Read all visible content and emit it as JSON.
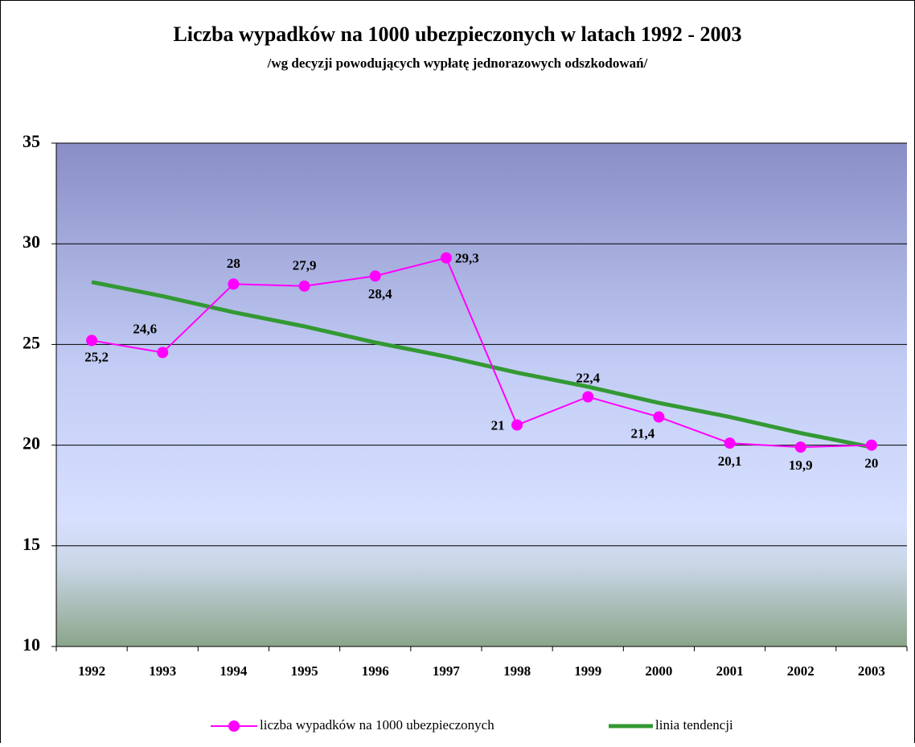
{
  "chart_data": {
    "type": "line",
    "title": "Liczba wypadków na 1000 ubezpieczonych w latach 1992 - 2003",
    "subtitle": "/wg decyzji powodujących wypłatę jednorazowych odszkodowań/",
    "categories": [
      "1992",
      "1993",
      "1994",
      "1995",
      "1996",
      "1997",
      "1998",
      "1999",
      "2000",
      "2001",
      "2002",
      "2003"
    ],
    "series": [
      {
        "name": "liczba wypadków na 1000 ubezpieczonych",
        "color": "#ff00ff",
        "values": [
          25.2,
          24.6,
          28,
          27.9,
          28.4,
          29.3,
          21,
          22.4,
          21.4,
          20.1,
          19.9,
          20
        ],
        "value_labels": [
          "25,2",
          "24,6",
          "28",
          "27,9",
          "28,4",
          "29,3",
          "21",
          "22,4",
          "21,4",
          "20,1",
          "19,9",
          "20"
        ]
      },
      {
        "name": "linia tendencji",
        "color": "#339933",
        "values": [
          28.1,
          27.4,
          26.6,
          25.9,
          25.1,
          24.4,
          23.6,
          22.9,
          22.1,
          21.4,
          20.6,
          19.9
        ]
      }
    ],
    "ylim": [
      10,
      35
    ],
    "yticks": [
      10,
      15,
      20,
      25,
      30,
      35
    ],
    "grid": true,
    "legend": "bottom"
  }
}
